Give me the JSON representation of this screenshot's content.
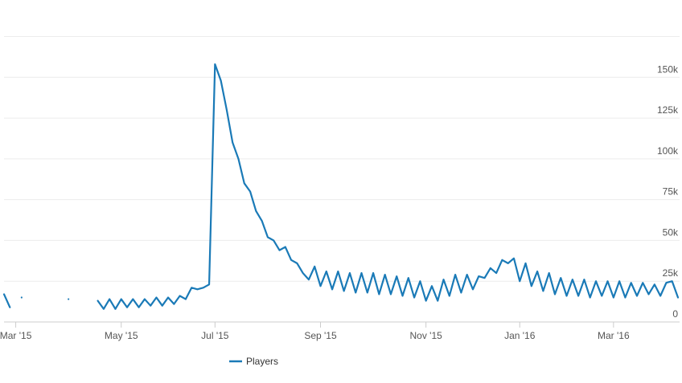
{
  "chart_data": {
    "type": "line",
    "categories": [
      null,
      null,
      "Mar '15",
      null,
      null,
      null,
      null,
      null,
      null,
      null,
      null,
      null,
      null,
      null,
      null,
      null,
      null,
      null,
      null,
      null,
      "May '15",
      null,
      null,
      null,
      null,
      null,
      null,
      null,
      null,
      null,
      null,
      null,
      null,
      null,
      null,
      null,
      "Jul '15",
      null,
      null,
      null,
      null,
      null,
      null,
      null,
      null,
      null,
      null,
      null,
      null,
      null,
      null,
      null,
      null,
      null,
      "Sep '15",
      null,
      null,
      null,
      null,
      null,
      null,
      null,
      null,
      null,
      null,
      null,
      null,
      null,
      null,
      null,
      null,
      null,
      "Nov '15",
      null,
      null,
      null,
      null,
      null,
      null,
      null,
      null,
      null,
      null,
      null,
      null,
      null,
      null,
      null,
      "Jan '16",
      null,
      null,
      null,
      null,
      null,
      null,
      null,
      null,
      null,
      null,
      null,
      null,
      null,
      null,
      null,
      "Mar '16",
      null,
      null,
      null,
      null,
      null,
      null,
      null,
      null,
      null,
      null,
      null
    ],
    "series": [
      {
        "name": "Players",
        "color": "#1a7ab7",
        "values": [
          17000,
          9000,
          null,
          15000,
          null,
          null,
          null,
          null,
          null,
          null,
          null,
          14000,
          null,
          null,
          null,
          null,
          13000,
          8000,
          14000,
          8000,
          14000,
          9000,
          14000,
          9000,
          14000,
          10000,
          15000,
          10000,
          15000,
          11000,
          16000,
          14000,
          21000,
          20000,
          21000,
          23000,
          158000,
          148000,
          130000,
          110000,
          100000,
          85000,
          80000,
          68000,
          62000,
          52000,
          50000,
          44000,
          46000,
          38000,
          36000,
          30000,
          26000,
          34000,
          22000,
          31000,
          20000,
          31000,
          19000,
          30000,
          18000,
          30000,
          18000,
          30000,
          17000,
          29000,
          17000,
          28000,
          16000,
          27000,
          15000,
          25000,
          13000,
          22000,
          13000,
          26000,
          16000,
          29000,
          18000,
          29000,
          20000,
          28000,
          27000,
          33000,
          30000,
          38000,
          36000,
          39000,
          25000,
          36000,
          22000,
          31000,
          19000,
          30000,
          17000,
          27000,
          16000,
          26000,
          16000,
          26000,
          15000,
          25000,
          16000,
          25000,
          15000,
          25000,
          15000,
          24000,
          16000,
          24000,
          17000,
          23000,
          16000,
          24000,
          25000,
          15000
        ]
      }
    ],
    "ylim": [
      0,
      175000
    ],
    "yticks": [
      0,
      {
        "value": 25000,
        "label": "25k"
      },
      {
        "value": 50000,
        "label": "50k"
      },
      {
        "value": 75000,
        "label": "75k"
      },
      {
        "value": 100000,
        "label": "100k"
      },
      {
        "value": 125000,
        "label": "125k"
      },
      {
        "value": 150000,
        "label": "150k"
      }
    ],
    "grid": true
  }
}
